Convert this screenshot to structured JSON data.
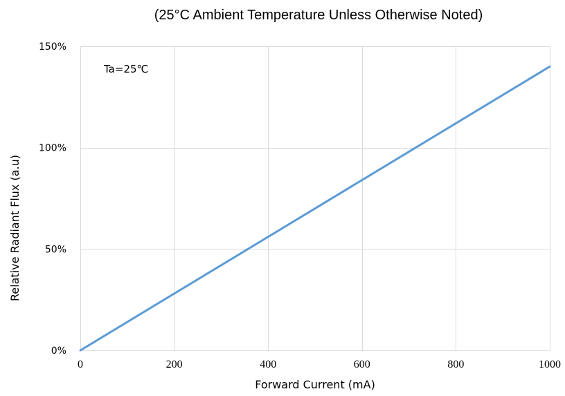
{
  "chart_data": {
    "type": "line",
    "title": "(25°C Ambient Temperature Unless Otherwise Noted)",
    "xlabel": "Forward Current (mA)",
    "ylabel": "Relative Radiant Flux (a.u)",
    "annotation": "Ta=25℃",
    "x_ticks": [
      "0",
      "200",
      "400",
      "600",
      "800",
      "1000"
    ],
    "x_tick_values": [
      0,
      200,
      400,
      600,
      800,
      1000
    ],
    "y_ticks": [
      "0%",
      "50%",
      "100%",
      "150%"
    ],
    "y_tick_values": [
      0,
      50,
      100,
      150
    ],
    "xlim": [
      0,
      1000
    ],
    "ylim": [
      0,
      150
    ],
    "grid": true,
    "series": [
      {
        "color": "#5b9bd5",
        "x": [
          0,
          1000
        ],
        "y": [
          0,
          140
        ]
      }
    ]
  }
}
